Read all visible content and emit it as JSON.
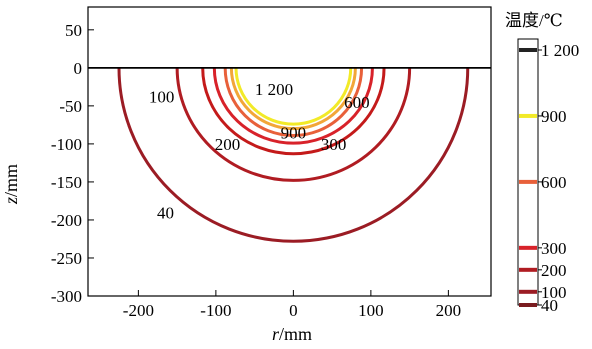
{
  "chart_data": {
    "type": "contour",
    "xlabel_var": "r",
    "xlabel_unit": "/mm",
    "ylabel_var": "z",
    "ylabel_unit": "/mm",
    "xlim": [
      -265,
      255
    ],
    "ylim": [
      -300,
      80
    ],
    "xticks": [
      -200,
      -100,
      0,
      100,
      200
    ],
    "yticks": [
      50,
      0,
      -50,
      -100,
      -150,
      -200,
      -250,
      -300
    ],
    "xtick_labels": [
      "-200",
      "-100",
      "0",
      "100",
      "200"
    ],
    "ytick_labels": [
      "50",
      "0",
      "-50",
      "-100",
      "-150",
      "-200",
      "-250",
      "-300"
    ],
    "contours": [
      {
        "level": 40,
        "label": "40",
        "color": "#9b1c24",
        "rx": 225,
        "depth": 228,
        "label_at": [
          -165,
          -190
        ]
      },
      {
        "level": 100,
        "label": "100",
        "color": "#b01c22",
        "rx": 150,
        "depth": 148,
        "label_at": [
          -170,
          -38
        ]
      },
      {
        "level": 200,
        "label": "200",
        "color": "#c41a1a",
        "rx": 117,
        "depth": 113,
        "label_at": [
          -85,
          -100
        ]
      },
      {
        "level": 300,
        "label": "300",
        "color": "#d8222a",
        "rx": 102,
        "depth": 99,
        "label_at": [
          52,
          -100
        ]
      },
      {
        "level": 600,
        "label": "600",
        "color": "#e8603a",
        "rx": 88,
        "depth": 89,
        "label_at": [
          82,
          -45
        ]
      },
      {
        "level": 900,
        "label": "900",
        "color": "#f2a638",
        "rx": 80,
        "depth": 80,
        "label_at": [
          0,
          -85
        ]
      },
      {
        "level": 1200,
        "label": "1 200",
        "color": "#f2ea28",
        "rx": 74,
        "depth": 74,
        "label_at": [
          -25,
          -28
        ]
      }
    ],
    "colorbar": {
      "title": "温度/℃",
      "min": 40,
      "max": 1250,
      "ticks": [
        {
          "value": 40,
          "label": "40",
          "color": "#7a1c20"
        },
        {
          "value": 100,
          "label": "100",
          "color": "#9b1c24"
        },
        {
          "value": 200,
          "label": "200",
          "color": "#b01c22"
        },
        {
          "value": 300,
          "label": "300",
          "color": "#d8222a"
        },
        {
          "value": 600,
          "label": "600",
          "color": "#e8603a"
        },
        {
          "value": 900,
          "label": "900",
          "color": "#f2ea28"
        },
        {
          "value": 1200,
          "label": "1 200",
          "color": "#222222"
        }
      ]
    }
  }
}
